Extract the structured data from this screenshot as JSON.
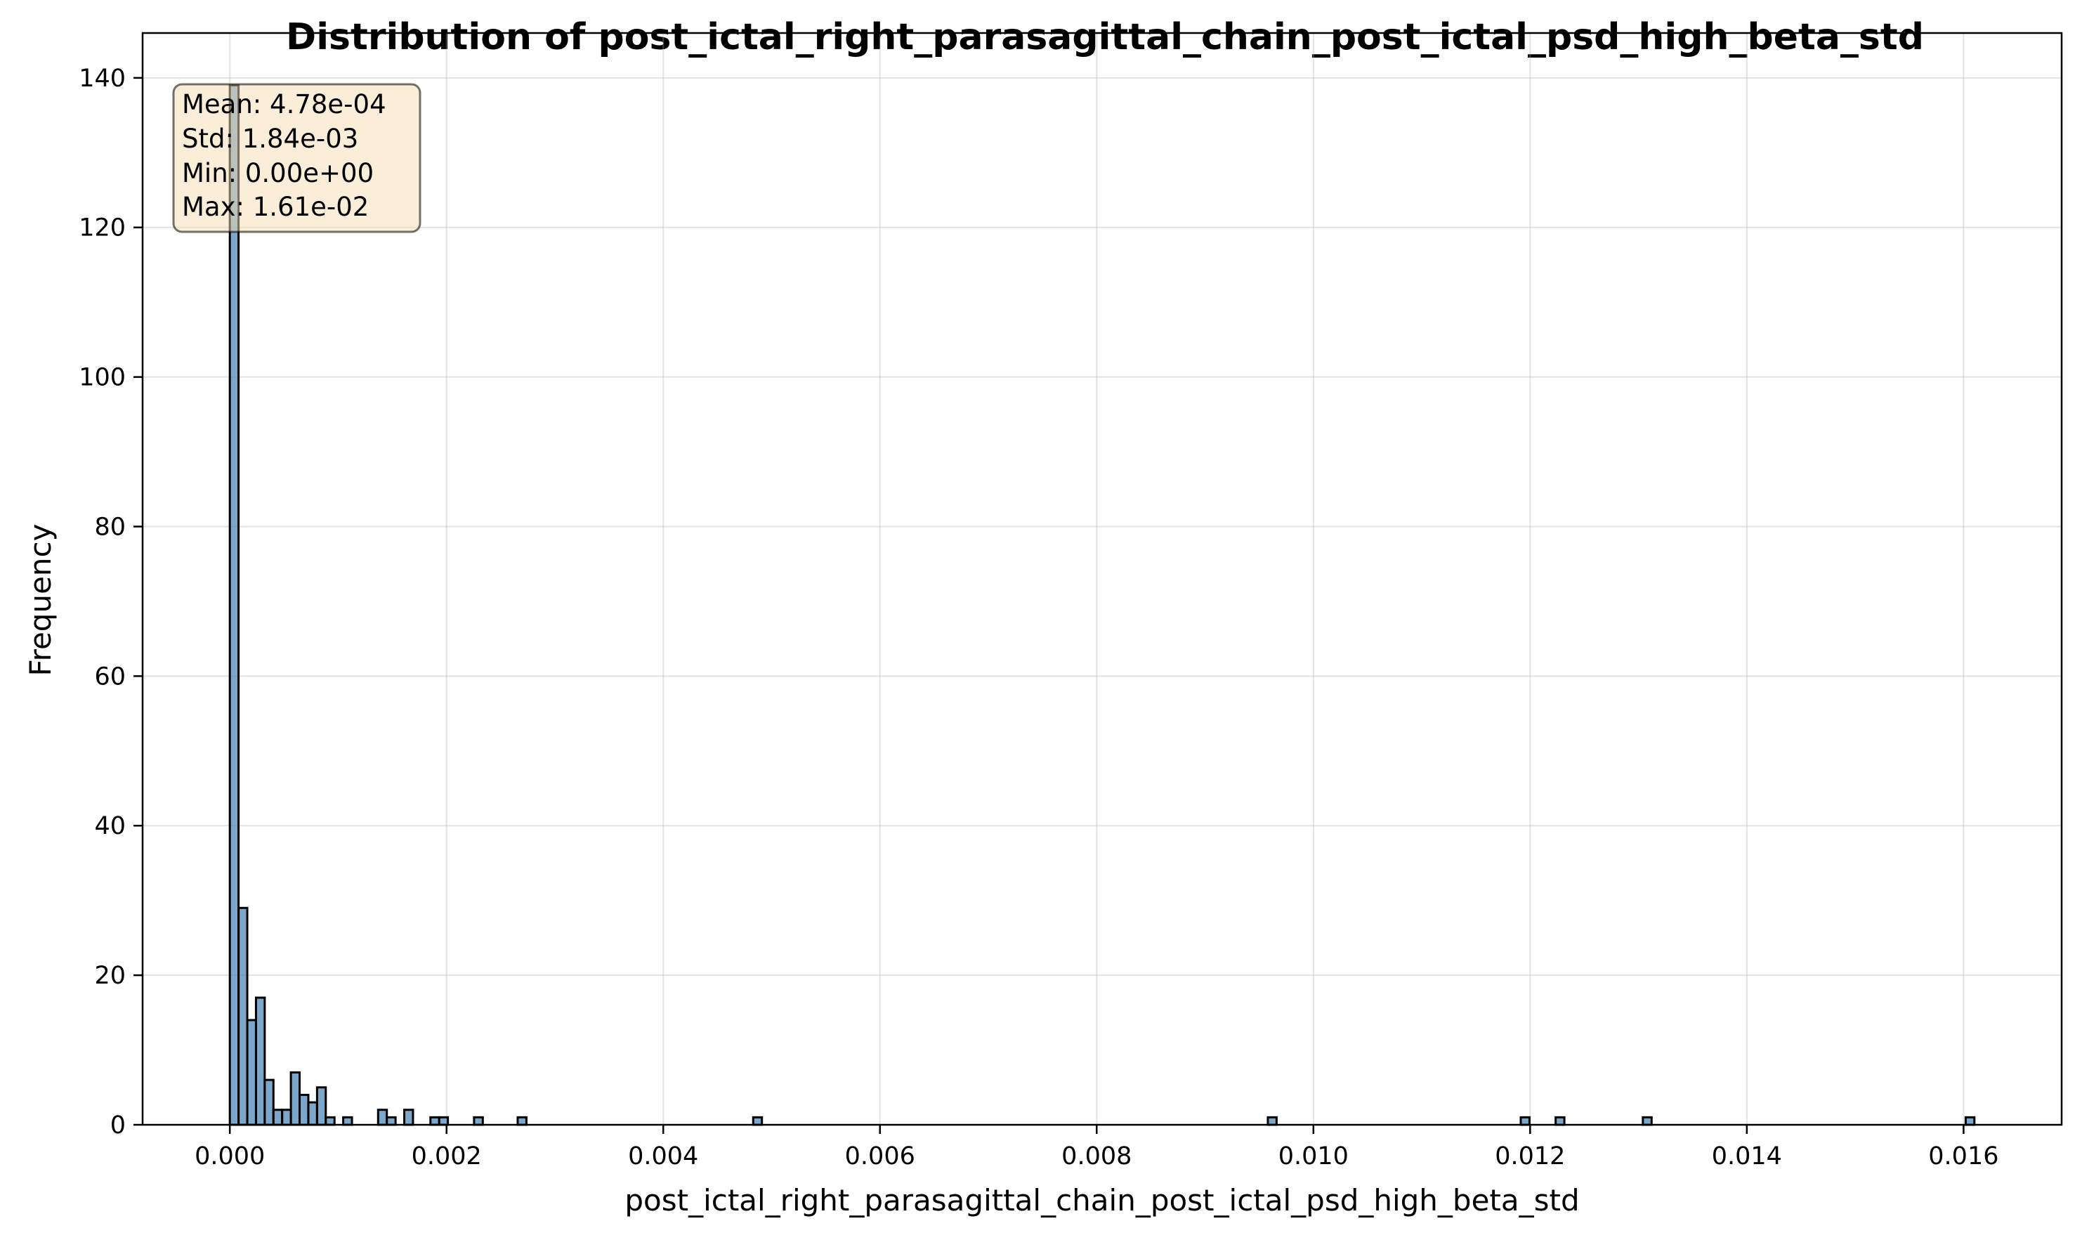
{
  "chart_data": {
    "type": "bar",
    "title": "Distribution of post_ictal_right_parasagittal_chain_post_ictal_psd_high_beta_std",
    "xlabel": "post_ictal_right_parasagittal_chain_post_ictal_psd_high_beta_std",
    "ylabel": "Frequency",
    "xlim": [
      -0.000805,
      0.016905
    ],
    "ylim": [
      0,
      146
    ],
    "xticks": [
      0.0,
      0.002,
      0.004,
      0.006,
      0.008,
      0.01,
      0.012,
      0.014,
      0.016
    ],
    "xtick_labels": [
      "0.000",
      "0.002",
      "0.004",
      "0.006",
      "0.008",
      "0.010",
      "0.012",
      "0.014",
      "0.016"
    ],
    "yticks": [
      0,
      20,
      40,
      60,
      80,
      100,
      120,
      140
    ],
    "ytick_labels": [
      "0",
      "20",
      "40",
      "60",
      "80",
      "100",
      "120",
      "140"
    ],
    "grid": true,
    "bin_width": 8.05e-05,
    "bins_start": [
      0.0,
      8.05e-05,
      0.000161,
      0.0002415,
      0.000322,
      0.0004025,
      0.000483,
      0.0005635,
      0.000644,
      0.0007245,
      0.000805,
      0.0008855,
      0.0010465,
      0.0013685,
      0.001449,
      0.00161,
      0.0018515,
      0.001932,
      0.002254,
      0.0026565,
      0.00483,
      0.0095795,
      0.0119135,
      0.0122355,
      0.0130405,
      0.0160195
    ],
    "values": [
      139,
      29,
      14,
      17,
      6,
      2,
      2,
      7,
      4,
      3,
      5,
      1,
      1,
      2,
      1,
      2,
      1,
      1,
      1,
      1,
      1,
      1,
      1,
      1,
      1,
      1
    ],
    "stats": {
      "lines": [
        "Mean: 4.78e-04",
        "Std: 1.84e-03",
        "Min: 0.00e+00",
        "Max: 1.61e-02"
      ],
      "box_fill": "#f5deb3",
      "placement": "top-left"
    },
    "colors": {
      "bar": "#4682b4",
      "edge": "#000000"
    }
  }
}
